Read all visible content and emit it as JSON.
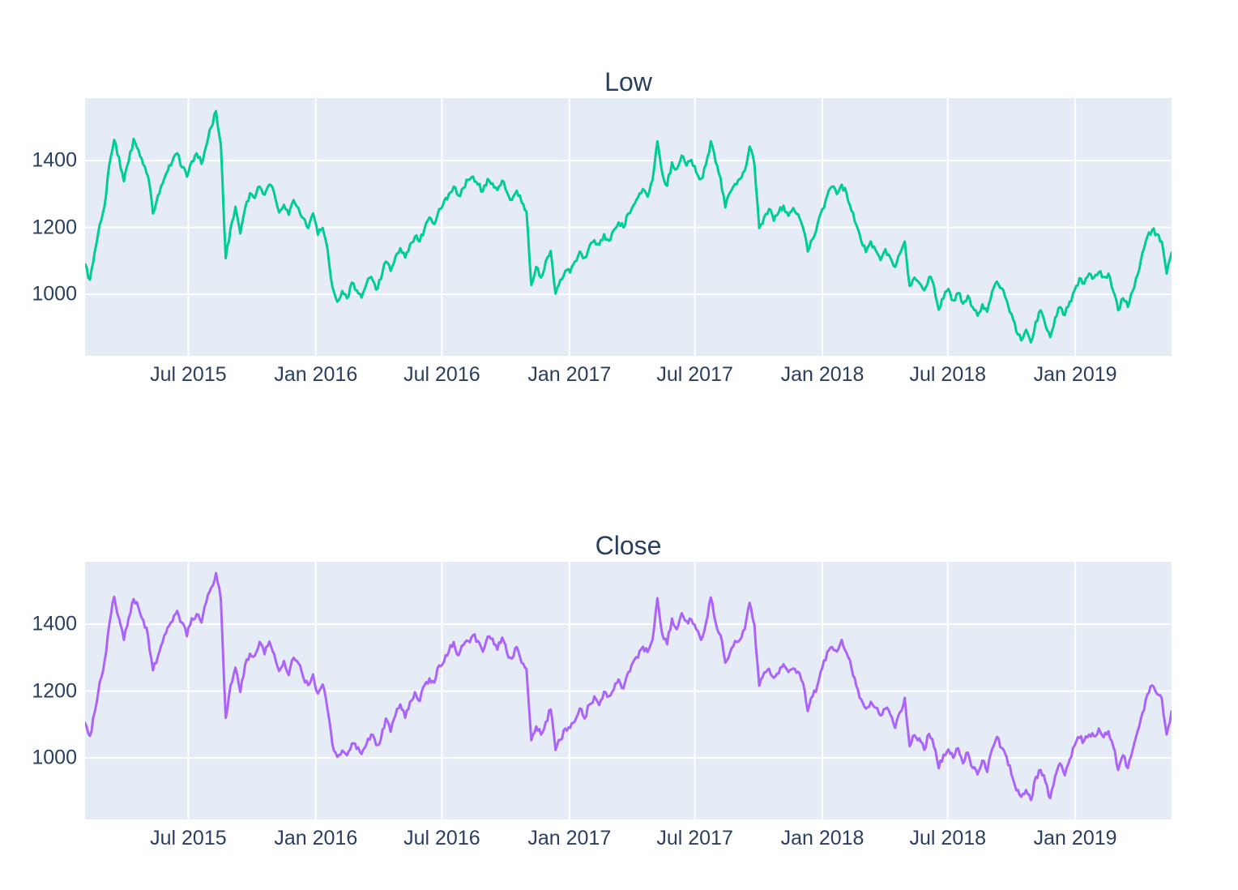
{
  "page": {
    "background": "#ffffff",
    "text_color": "#2a3f5f"
  },
  "chart_data": [
    {
      "type": "line",
      "title": "Low",
      "plot_bgcolor": "#e5ecf6",
      "grid_color": "#ffffff",
      "tick_color": "#2a3f5f",
      "grid": true,
      "legend": "none",
      "x_axis": {
        "min": "2015-02-02",
        "max": "2019-05-20",
        "ticks": [
          {
            "date": "2015-07-01",
            "label": "Jul 2015"
          },
          {
            "date": "2016-01-01",
            "label": "Jan 2016"
          },
          {
            "date": "2016-07-01",
            "label": "Jul 2016"
          },
          {
            "date": "2017-01-01",
            "label": "Jan 2017"
          },
          {
            "date": "2017-07-01",
            "label": "Jul 2017"
          },
          {
            "date": "2018-01-01",
            "label": "Jan 2018"
          },
          {
            "date": "2018-07-01",
            "label": "Jul 2018"
          },
          {
            "date": "2019-01-01",
            "label": "Jan 2019"
          }
        ]
      },
      "y_axis": {
        "min": 816,
        "max": 1587,
        "ticks": [
          {
            "value": 1000,
            "label": "1000"
          },
          {
            "value": 1200,
            "label": "1200"
          },
          {
            "value": 1400,
            "label": "1400"
          }
        ]
      },
      "render": {
        "line_width": 3,
        "midpoints": 2,
        "jitter": 10
      },
      "series": [
        {
          "name": "Low",
          "color": "#00cc96",
          "start_date": "2015-02-02",
          "interval_days": 7,
          "values": [
            1090,
            1044,
            1128,
            1208,
            1262,
            1388,
            1462,
            1410,
            1338,
            1398,
            1465,
            1432,
            1388,
            1352,
            1242,
            1295,
            1332,
            1368,
            1398,
            1422,
            1380,
            1352,
            1398,
            1422,
            1390,
            1445,
            1500,
            1548,
            1448,
            1108,
            1198,
            1262,
            1182,
            1258,
            1302,
            1288,
            1322,
            1298,
            1328,
            1302,
            1245,
            1268,
            1238,
            1282,
            1258,
            1228,
            1198,
            1242,
            1178,
            1198,
            1135,
            1022,
            978,
            1010,
            988,
            1035,
            1012,
            990,
            1030,
            1052,
            1014,
            1045,
            1098,
            1070,
            1112,
            1138,
            1110,
            1150,
            1172,
            1158,
            1198,
            1230,
            1210,
            1255,
            1278,
            1300,
            1322,
            1295,
            1318,
            1342,
            1352,
            1328,
            1308,
            1345,
            1332,
            1312,
            1340,
            1305,
            1282,
            1310,
            1275,
            1248,
            1028,
            1082,
            1050,
            1100,
            1130,
            1002,
            1044,
            1070,
            1065,
            1098,
            1128,
            1110,
            1145,
            1162,
            1148,
            1180,
            1160,
            1192,
            1215,
            1200,
            1242,
            1265,
            1290,
            1315,
            1292,
            1342,
            1458,
            1362,
            1325,
            1395,
            1375,
            1415,
            1385,
            1402,
            1365,
            1345,
            1388,
            1458,
            1395,
            1350,
            1260,
            1305,
            1330,
            1345,
            1370,
            1442,
            1388,
            1198,
            1230,
            1255,
            1220,
            1245,
            1265,
            1235,
            1258,
            1240,
            1200,
            1128,
            1165,
            1210,
            1255,
            1295,
            1322,
            1300,
            1328,
            1302,
            1250,
            1208,
            1160,
            1126,
            1158,
            1132,
            1102,
            1135,
            1110,
            1082,
            1122,
            1158,
            1025,
            1050,
            1034,
            1012,
            1052,
            1026,
            954,
            988,
            1016,
            982,
            1004,
            972,
            996,
            962,
            936,
            970,
            948,
            1008,
            1038,
            1018,
            982,
            942,
            888,
            862,
            894,
            856,
            918,
            952,
            908,
            872,
            930,
            962,
            938,
            978,
            1012,
            1048,
            1032,
            1062,
            1050,
            1066,
            1052,
            1062,
            1008,
            952,
            988,
            962,
            1010,
            1058,
            1125,
            1172,
            1192,
            1180,
            1158,
            1062,
            1125
          ]
        }
      ]
    },
    {
      "type": "line",
      "title": "Close",
      "plot_bgcolor": "#e5ecf6",
      "grid_color": "#ffffff",
      "tick_color": "#2a3f5f",
      "grid": true,
      "legend": "none",
      "x_axis": {
        "min": "2015-02-02",
        "max": "2019-05-20",
        "ticks": [
          {
            "date": "2015-07-01",
            "label": "Jul 2015"
          },
          {
            "date": "2016-01-01",
            "label": "Jan 2016"
          },
          {
            "date": "2016-07-01",
            "label": "Jul 2016"
          },
          {
            "date": "2017-01-01",
            "label": "Jan 2017"
          },
          {
            "date": "2017-07-01",
            "label": "Jul 2017"
          },
          {
            "date": "2018-01-01",
            "label": "Jan 2018"
          },
          {
            "date": "2018-07-01",
            "label": "Jul 2018"
          },
          {
            "date": "2019-01-01",
            "label": "Jan 2019"
          }
        ]
      },
      "y_axis": {
        "min": 816,
        "max": 1587,
        "ticks": [
          {
            "value": 1000,
            "label": "1000"
          },
          {
            "value": 1200,
            "label": "1200"
          },
          {
            "value": 1400,
            "label": "1400"
          }
        ]
      },
      "render": {
        "line_width": 3,
        "midpoints": 2,
        "jitter": 10
      },
      "series": [
        {
          "name": "Close",
          "color": "#ab63fa",
          "start_date": "2015-02-02",
          "interval_days": 7,
          "values": [
            1105,
            1066,
            1138,
            1226,
            1287,
            1400,
            1482,
            1418,
            1353,
            1420,
            1475,
            1450,
            1413,
            1364,
            1262,
            1303,
            1347,
            1390,
            1408,
            1440,
            1405,
            1364,
            1418,
            1430,
            1405,
            1467,
            1510,
            1553,
            1473,
            1120,
            1218,
            1270,
            1197,
            1280,
            1312,
            1306,
            1347,
            1310,
            1348,
            1310,
            1260,
            1290,
            1248,
            1300,
            1283,
            1240,
            1218,
            1250,
            1193,
            1220,
            1145,
            1040,
            1003,
            1022,
            1008,
            1043,
            1027,
            1012,
            1040,
            1070,
            1039,
            1057,
            1118,
            1078,
            1127,
            1160,
            1120,
            1168,
            1197,
            1170,
            1218,
            1238,
            1225,
            1277,
            1288,
            1318,
            1347,
            1307,
            1338,
            1350,
            1367,
            1350,
            1318,
            1363,
            1357,
            1324,
            1360,
            1313,
            1297,
            1332,
            1285,
            1266,
            1053,
            1094,
            1070,
            1108,
            1145,
            1024,
            1054,
            1088,
            1090,
            1110,
            1148,
            1118,
            1160,
            1184,
            1158,
            1198,
            1185,
            1204,
            1235,
            1208,
            1257,
            1287,
            1300,
            1333,
            1317,
            1354,
            1478,
            1370,
            1340,
            1417,
            1385,
            1433,
            1410,
            1414,
            1385,
            1353,
            1403,
            1480,
            1405,
            1368,
            1285,
            1317,
            1350,
            1353,
            1385,
            1464,
            1398,
            1216,
            1255,
            1267,
            1240,
            1253,
            1280,
            1257,
            1268,
            1258,
            1225,
            1140,
            1185,
            1218,
            1270,
            1317,
            1332,
            1318,
            1353,
            1314,
            1270,
            1216,
            1175,
            1148,
            1168,
            1150,
            1127,
            1147,
            1130,
            1090,
            1137,
            1180,
            1035,
            1068,
            1059,
            1024,
            1072,
            1034,
            969,
            1010,
            1026,
            1000,
            1029,
            984,
            1016,
            970,
            951,
            992,
            958,
            1026,
            1063,
            1030,
            1002,
            950,
            903,
            884,
            904,
            874,
            943,
            964,
            928,
            880,
            945,
            984,
            948,
            996,
            1037,
            1060,
            1052,
            1070,
            1065,
            1088,
            1062,
            1080,
            1033,
            964,
            1008,
            970,
            1025,
            1080,
            1135,
            1190,
            1217,
            1192,
            1178,
            1070,
            1140
          ]
        }
      ]
    }
  ]
}
